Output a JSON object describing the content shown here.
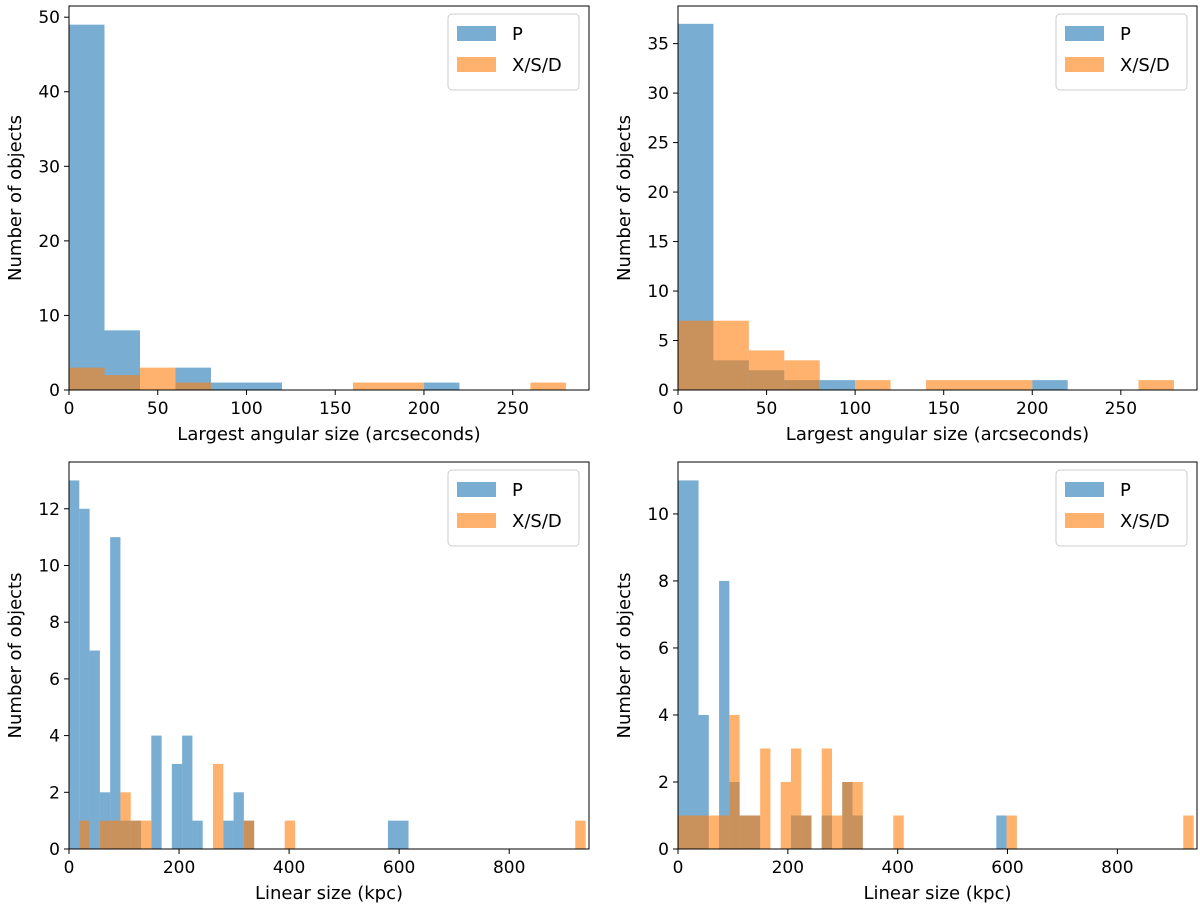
{
  "colors": {
    "P": "#1f77b4",
    "XSD": "#ff7f0e"
  },
  "chart_data": [
    {
      "type": "bar",
      "panel": "top-left",
      "xlabel": "Largest angular size (arcseconds)",
      "ylabel": "Number of objects",
      "xlim": [
        0,
        293
      ],
      "ylim": [
        0,
        51.5
      ],
      "xticks": [
        0,
        50,
        100,
        150,
        200,
        250
      ],
      "yticks": [
        0,
        10,
        20,
        30,
        40,
        50
      ],
      "legend": {
        "placement": "top-right",
        "entries": [
          "P",
          "X/S/D"
        ]
      },
      "series": [
        {
          "name": "P",
          "key": "P",
          "bins": [
            [
              0,
              20,
              49
            ],
            [
              20,
              40,
              8
            ],
            [
              60,
              80,
              3
            ],
            [
              80,
              120,
              1
            ],
            [
              200,
              220,
              1
            ]
          ]
        },
        {
          "name": "X/S/D",
          "key": "XSD",
          "bins": [
            [
              0,
              20,
              3
            ],
            [
              20,
              40,
              2
            ],
            [
              40,
              60,
              3
            ],
            [
              60,
              80,
              1
            ],
            [
              160,
              200,
              1
            ],
            [
              260,
              280,
              1
            ]
          ]
        }
      ]
    },
    {
      "type": "bar",
      "panel": "top-right",
      "xlabel": "Largest angular size (arcseconds)",
      "ylabel": "Number of objects",
      "xlim": [
        0,
        293
      ],
      "ylim": [
        0,
        38.8
      ],
      "xticks": [
        0,
        50,
        100,
        150,
        200,
        250
      ],
      "yticks": [
        0,
        5,
        10,
        15,
        20,
        25,
        30,
        35
      ],
      "legend": {
        "placement": "top-right",
        "entries": [
          "P",
          "X/S/D"
        ]
      },
      "series": [
        {
          "name": "P",
          "key": "P",
          "bins": [
            [
              0,
              20,
              37
            ],
            [
              20,
              40,
              3
            ],
            [
              40,
              60,
              2
            ],
            [
              60,
              80,
              1
            ],
            [
              80,
              100,
              1
            ],
            [
              200,
              220,
              1
            ]
          ]
        },
        {
          "name": "X/S/D",
          "key": "XSD",
          "bins": [
            [
              0,
              20,
              7
            ],
            [
              20,
              40,
              7
            ],
            [
              40,
              60,
              4
            ],
            [
              60,
              80,
              3
            ],
            [
              100,
              120,
              1
            ],
            [
              140,
              200,
              1
            ],
            [
              260,
              280,
              1
            ]
          ]
        }
      ]
    },
    {
      "type": "bar",
      "panel": "bottom-left",
      "xlabel": "Linear size (kpc)",
      "ylabel": "Number of objects",
      "xlim": [
        0,
        945
      ],
      "ylim": [
        0,
        13.65
      ],
      "xticks": [
        0,
        200,
        400,
        600,
        800
      ],
      "yticks": [
        0,
        2,
        4,
        6,
        8,
        10,
        12
      ],
      "legend": {
        "placement": "top-right",
        "entries": [
          "P",
          "X/S/D"
        ]
      },
      "series": [
        {
          "name": "P",
          "key": "P",
          "bins": [
            [
              0,
              18.7,
              13
            ],
            [
              18.7,
              37.4,
              12
            ],
            [
              37.4,
              56.1,
              7
            ],
            [
              56.1,
              74.8,
              2
            ],
            [
              74.8,
              93.5,
              11
            ],
            [
              93.5,
              112.2,
              1
            ],
            [
              112.2,
              130.9,
              1
            ],
            [
              149.6,
              168.3,
              4
            ],
            [
              186.9,
              205.6,
              3
            ],
            [
              205.6,
              224.3,
              4
            ],
            [
              224.3,
              243,
              1
            ],
            [
              280.4,
              299.1,
              1
            ],
            [
              299.1,
              317.8,
              2
            ],
            [
              317.8,
              336.5,
              1
            ],
            [
              579.6,
              617,
              1
            ]
          ]
        },
        {
          "name": "X/S/D",
          "key": "XSD",
          "bins": [
            [
              18.7,
              37.4,
              1
            ],
            [
              56.1,
              74.8,
              1
            ],
            [
              74.8,
              93.5,
              1
            ],
            [
              93.5,
              112.2,
              2
            ],
            [
              112.2,
              149.6,
              1
            ],
            [
              261.7,
              280.4,
              3
            ],
            [
              317.8,
              336.5,
              1
            ],
            [
              392,
              411,
              1
            ],
            [
              920,
              939,
              1
            ]
          ]
        }
      ]
    },
    {
      "type": "bar",
      "panel": "bottom-right",
      "xlabel": "Linear size (kpc)",
      "ylabel": "Number of objects",
      "xlim": [
        0,
        945
      ],
      "ylim": [
        0,
        11.55
      ],
      "xticks": [
        0,
        200,
        400,
        600,
        800
      ],
      "yticks": [
        0,
        2,
        4,
        6,
        8,
        10
      ],
      "legend": {
        "placement": "top-right",
        "entries": [
          "P",
          "X/S/D"
        ]
      },
      "series": [
        {
          "name": "P",
          "key": "P",
          "bins": [
            [
              0,
              37.4,
              11
            ],
            [
              37.4,
              56.1,
              4
            ],
            [
              74.8,
              93.5,
              8
            ],
            [
              93.5,
              112.2,
              2
            ],
            [
              112.2,
              149.6,
              1
            ],
            [
              205.6,
              224.3,
              1
            ],
            [
              224.3,
              243,
              1
            ],
            [
              261.7,
              280.4,
              1
            ],
            [
              299.1,
              317.8,
              2
            ],
            [
              317.8,
              336.5,
              1
            ],
            [
              579.6,
              598.3,
              1
            ]
          ]
        },
        {
          "name": "X/S/D",
          "key": "XSD",
          "bins": [
            [
              0,
              56.1,
              1
            ],
            [
              56.1,
              74.8,
              1
            ],
            [
              74.8,
              93.5,
              1
            ],
            [
              93.5,
              112.2,
              4
            ],
            [
              112.2,
              149.6,
              1
            ],
            [
              149.6,
              168.3,
              3
            ],
            [
              186.9,
              205.6,
              2
            ],
            [
              205.6,
              224.3,
              3
            ],
            [
              224.3,
              243,
              1
            ],
            [
              261.7,
              280.4,
              3
            ],
            [
              280.4,
              299.1,
              1
            ],
            [
              299.1,
              317.8,
              2
            ],
            [
              317.8,
              336.5,
              2
            ],
            [
              392,
              411,
              1
            ],
            [
              598.3,
              617,
              1
            ],
            [
              920,
              939,
              1
            ]
          ]
        }
      ]
    }
  ]
}
